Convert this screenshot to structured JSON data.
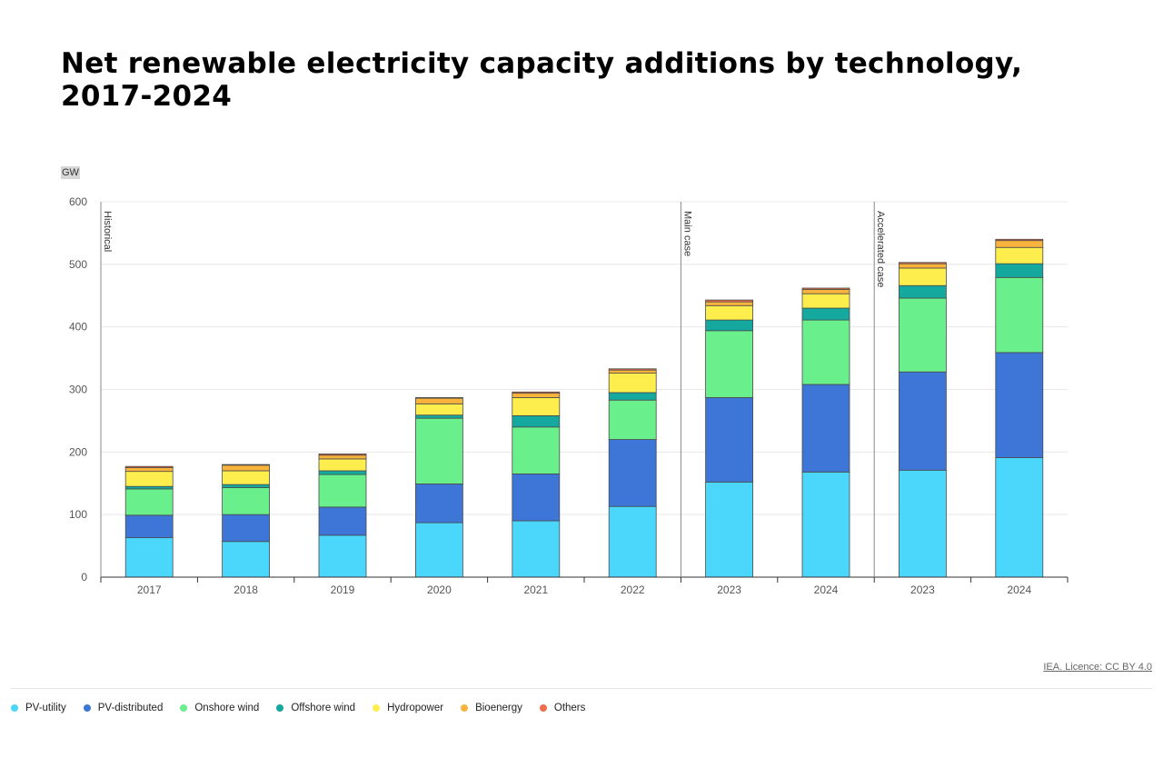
{
  "title": "Net renewable electricity capacity additions by technology, 2017-2024",
  "unit": "GW",
  "source": "IEA. Licence: CC BY 4.0",
  "chart_data": {
    "type": "bar",
    "stacked": true,
    "title": "Net renewable electricity capacity additions by technology, 2017-2024",
    "ylabel": "GW",
    "xlabel": "",
    "ylim": [
      0,
      600
    ],
    "yticks": [
      0,
      100,
      200,
      300,
      400,
      500,
      600
    ],
    "categories": [
      "2017",
      "2018",
      "2019",
      "2020",
      "2021",
      "2022",
      "2023",
      "2024",
      "2023",
      "2024"
    ],
    "sections": [
      {
        "label": "Historical",
        "start_index": 0
      },
      {
        "label": "Main case",
        "start_index": 6
      },
      {
        "label": "Accelerated case",
        "start_index": 8
      }
    ],
    "series": [
      {
        "name": "PV-utility",
        "color": "#4bd6fc",
        "values": [
          63,
          57,
          67,
          87,
          90,
          113,
          152,
          168,
          171,
          191
        ]
      },
      {
        "name": "PV-distributed",
        "color": "#3d76d6",
        "values": [
          36,
          43,
          45,
          62,
          75,
          107,
          135,
          140,
          157,
          168
        ]
      },
      {
        "name": "Onshore wind",
        "color": "#69ef8c",
        "values": [
          42,
          43,
          52,
          105,
          75,
          63,
          107,
          103,
          118,
          120
        ]
      },
      {
        "name": "Offshore wind",
        "color": "#14a89e",
        "values": [
          4,
          5,
          6,
          5,
          18,
          12,
          17,
          19,
          20,
          22
        ]
      },
      {
        "name": "Hydropower",
        "color": "#fdee4d",
        "values": [
          24,
          22,
          19,
          18,
          29,
          31,
          23,
          23,
          28,
          26
        ]
      },
      {
        "name": "Bioenergy",
        "color": "#f8b33c",
        "values": [
          6,
          9,
          6,
          9,
          7,
          5,
          6,
          7,
          7,
          11
        ]
      },
      {
        "name": "Others",
        "color": "#ef6e4a",
        "values": [
          2,
          1,
          2,
          1,
          2,
          2,
          3,
          2,
          2,
          2
        ]
      }
    ],
    "legend_position": "bottom-left",
    "grid": true
  }
}
